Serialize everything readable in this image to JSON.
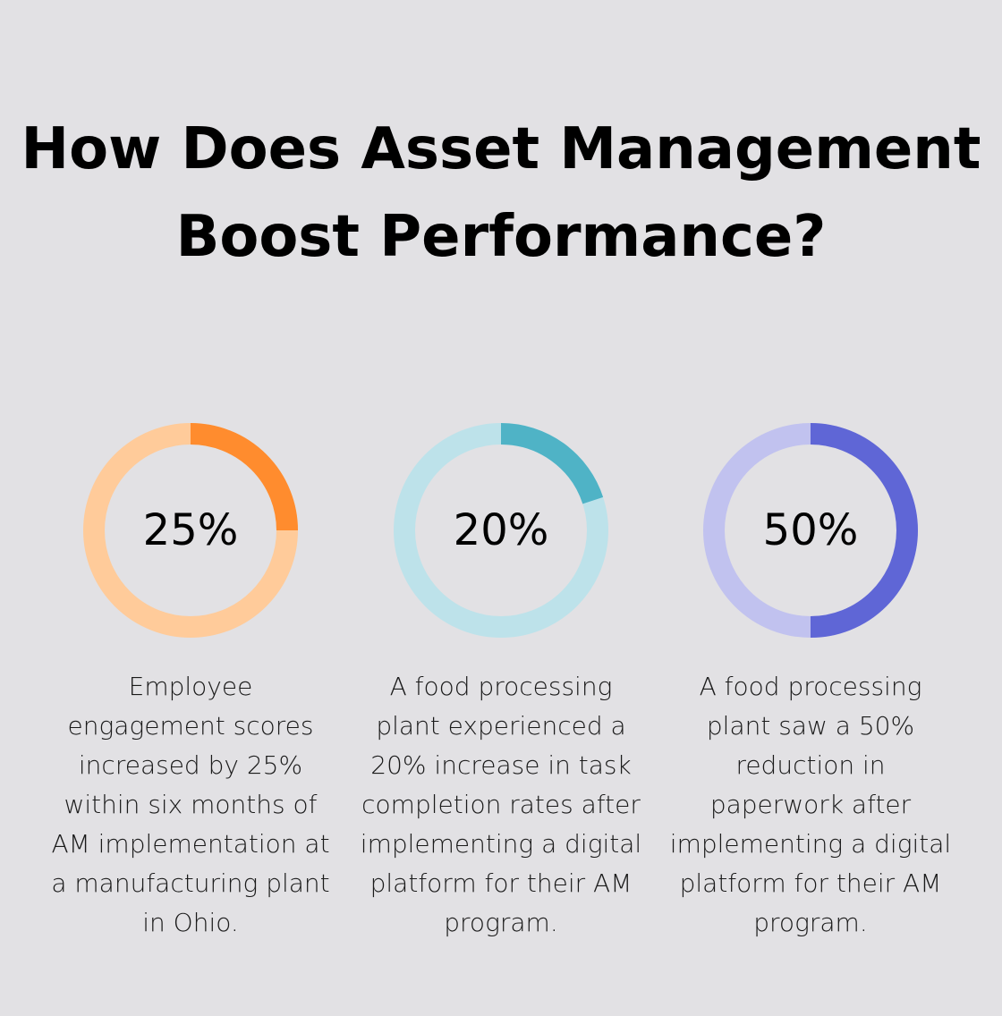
{
  "title": "How Does Asset Management Boost Performance?",
  "chart_data": [
    {
      "type": "pie",
      "variant": "donut",
      "value": 25,
      "label": "25%",
      "colors": {
        "filled": "#ff8c2e",
        "track": "#ffcb9a"
      },
      "description": "Employee engagement scores increased by 25% within six months of AM implementation at a manufacturing plant in Ohio."
    },
    {
      "type": "pie",
      "variant": "donut",
      "value": 20,
      "label": "20%",
      "colors": {
        "filled": "#4fb3c6",
        "track": "#bde2ea"
      },
      "description": "A food processing plant experienced a 20% increase in task completion rates after implementing a digital platform for their AM program."
    },
    {
      "type": "pie",
      "variant": "donut",
      "value": 50,
      "label": "50%",
      "colors": {
        "filled": "#5f66d6",
        "track": "#c1c2ef"
      },
      "description": "A food processing plant saw a 50% reduction in paperwork after implementing a digital platform for their AM program."
    }
  ]
}
